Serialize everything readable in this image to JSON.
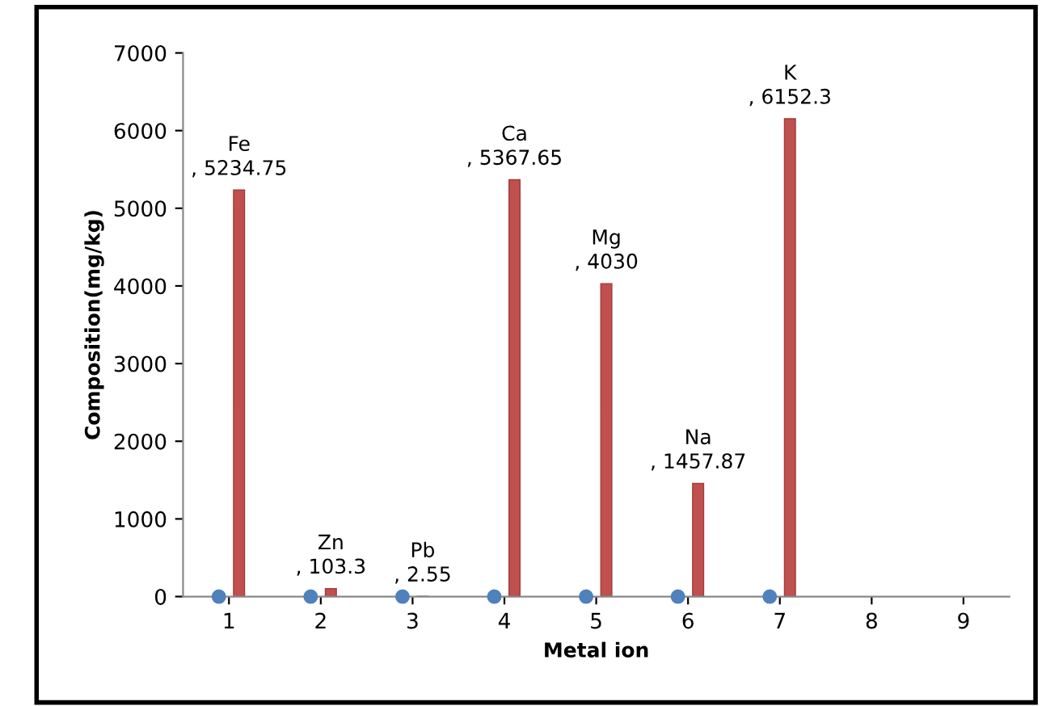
{
  "chart_data": {
    "type": "bar",
    "xlabel": "Metal ion",
    "ylabel": "Composition(mg/kg)",
    "categories": [
      "1",
      "2",
      "3",
      "4",
      "5",
      "6",
      "7",
      "8",
      "9"
    ],
    "series": [
      {
        "type": "scatter",
        "marker": "circle",
        "color": "#4f81bd",
        "values": [
          0,
          0,
          0,
          0,
          0,
          0,
          0,
          null,
          null
        ]
      },
      {
        "color": "#c0504d",
        "values": [
          5234.75,
          103.3,
          2.55,
          5367.65,
          4030,
          1457.87,
          6152.3,
          null,
          null
        ],
        "value_labels": [
          "Fe\n, 5234.75",
          "Zn\n, 103.3",
          "Pb\n, 2.55",
          "Ca\n, 5367.65",
          "Mg\n, 4030",
          "Na\n, 1457.87",
          "K\n, 6152.3",
          null,
          null
        ]
      }
    ],
    "ylim": [
      0,
      7000
    ],
    "yticks": [
      0,
      1000,
      2000,
      3000,
      4000,
      5000,
      6000,
      7000
    ],
    "grid": false,
    "legend": false
  }
}
